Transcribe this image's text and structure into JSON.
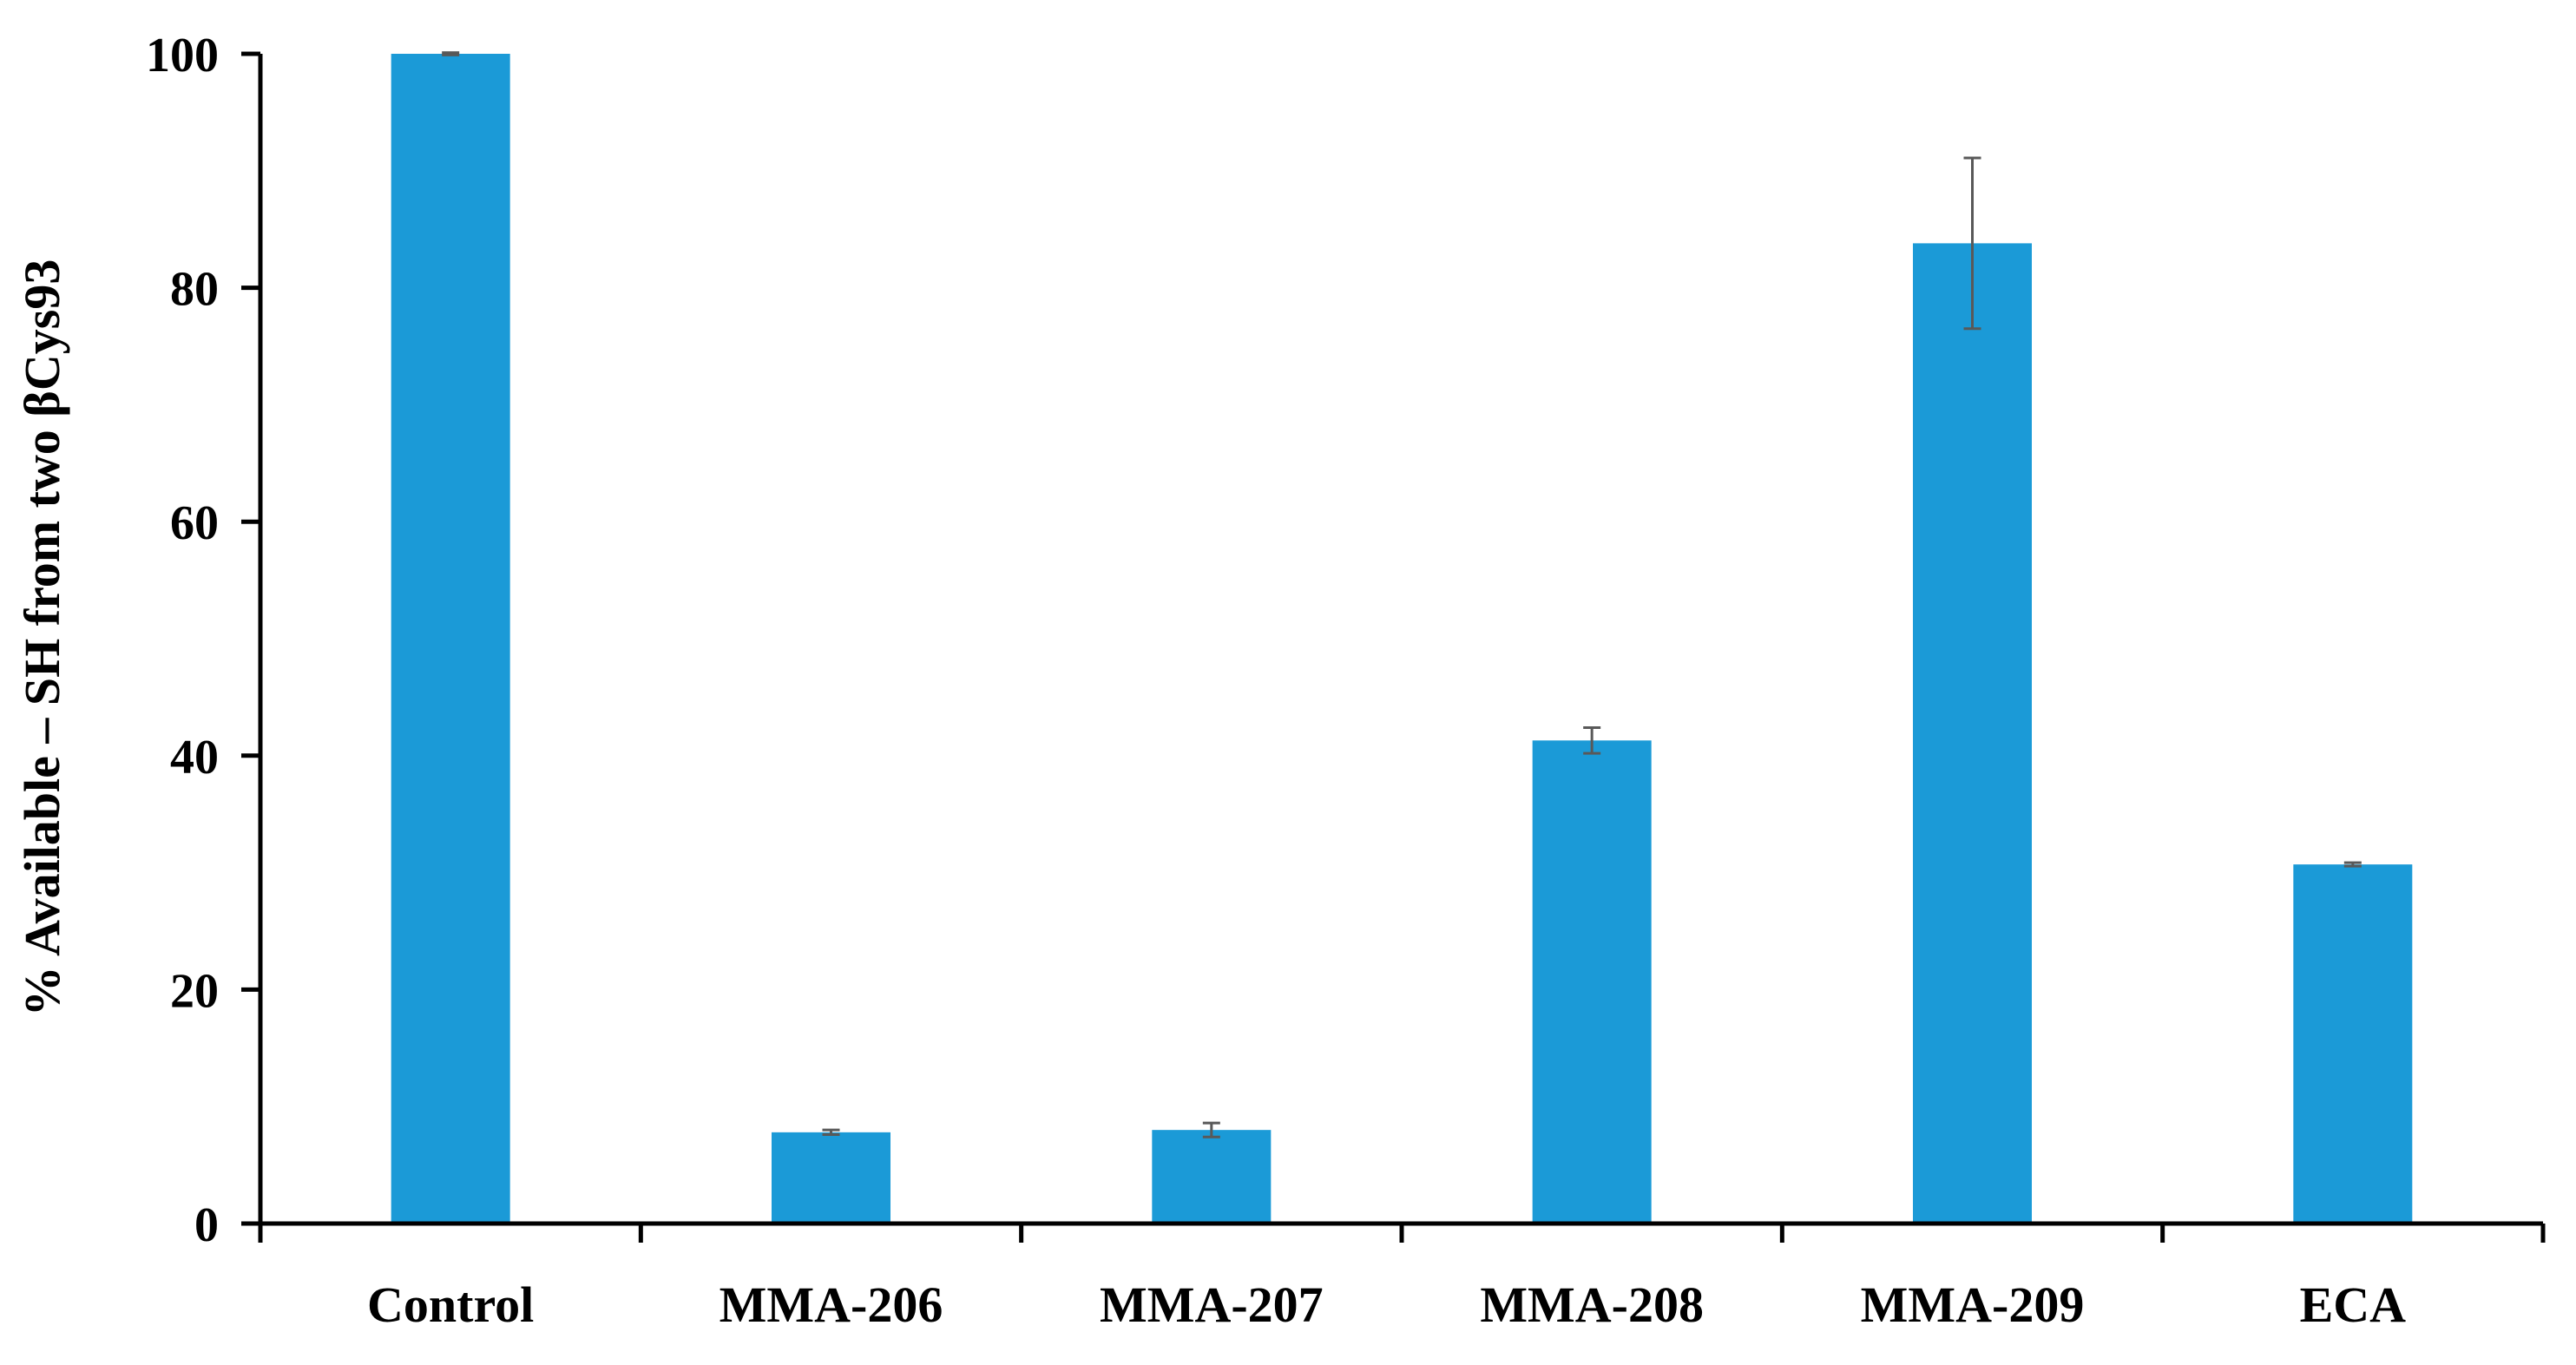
{
  "chart_data": {
    "type": "bar",
    "title": "",
    "xlabel": "",
    "ylabel": "% Available – SH from two βCys93",
    "categories": [
      "Control",
      "MMA-206",
      "MMA-207",
      "MMA-208",
      "MMA-209",
      "ECA"
    ],
    "values": [
      100,
      7.8,
      8.0,
      41.3,
      83.8,
      30.7
    ],
    "error": [
      0.1,
      0.2,
      0.6,
      1.1,
      7.3,
      0.15
    ],
    "ylim": [
      0,
      100
    ],
    "yticks": [
      "0",
      "20",
      "40",
      "60",
      "80",
      "100"
    ],
    "grid": false,
    "legend": "none",
    "colors": {
      "bar": "#1b9ad7",
      "error_bar": "#595959",
      "axis": "#000000"
    }
  }
}
